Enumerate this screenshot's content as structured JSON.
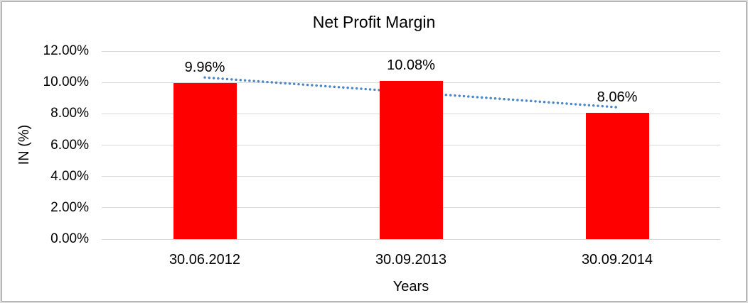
{
  "colors": {
    "bar": "#ff0000",
    "trendline": "#4a86c8",
    "gridline": "#d9d9d9",
    "text": "#000000",
    "frame_outer": "#dcdcdc",
    "frame_inner": "#9e9e9e"
  },
  "chart_data": {
    "type": "bar",
    "title": "Net Profit Margin",
    "xlabel": "Years",
    "ylabel": "IN (%)",
    "categories": [
      "30.06.2012",
      "30.09.2013",
      "30.09.2014"
    ],
    "values": [
      9.96,
      10.08,
      8.06
    ],
    "data_labels": [
      "9.96%",
      "10.08%",
      "8.06%"
    ],
    "ylim": [
      0,
      12
    ],
    "ytick_step": 2,
    "ytick_labels": [
      "0.00%",
      "2.00%",
      "4.00%",
      "6.00%",
      "8.00%",
      "10.00%",
      "12.00%"
    ],
    "grid": true,
    "legend": "none",
    "trendline": {
      "style": "dotted",
      "start_value": 10.3167,
      "end_value": 8.4167
    }
  }
}
